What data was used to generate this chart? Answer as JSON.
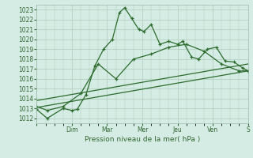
{
  "background_color": "#d4ece4",
  "grid_color": "#b0ccbb",
  "line_color": "#2d6b2d",
  "xlabel": "Pression niveau de la mer( hPa )",
  "ylim": [
    1011.5,
    1023.5
  ],
  "yticks": [
    1012,
    1013,
    1014,
    1015,
    1016,
    1017,
    1018,
    1019,
    1020,
    1021,
    1022,
    1023
  ],
  "xtick_labels": [
    "",
    "Dim",
    "Mar",
    "Mer",
    "Jeu",
    "Ven",
    "S"
  ],
  "xtick_positions": [
    0,
    2,
    4,
    6,
    8,
    10,
    12
  ],
  "series1_x": [
    0,
    0.6,
    1.5,
    2.0,
    2.3,
    2.8,
    3.3,
    3.8,
    4.3,
    4.7,
    5.0,
    5.4,
    5.8,
    6.1,
    6.5,
    7.0,
    7.5,
    8.0,
    8.3,
    8.8,
    9.2,
    9.7,
    10.2,
    10.7,
    11.2,
    11.7,
    12.0
  ],
  "series1_y": [
    1012.9,
    1012.0,
    1013.0,
    1012.8,
    1012.9,
    1014.4,
    1017.3,
    1019.0,
    1020.0,
    1022.7,
    1023.2,
    1022.1,
    1021.0,
    1020.8,
    1021.5,
    1019.5,
    1019.8,
    1019.5,
    1019.8,
    1018.2,
    1018.0,
    1019.0,
    1019.2,
    1017.8,
    1017.7,
    1017.1,
    1016.8
  ],
  "series2_x": [
    0,
    0.6,
    1.5,
    2.5,
    3.5,
    4.5,
    5.5,
    6.5,
    7.5,
    8.5,
    9.5,
    10.5,
    11.5,
    12.0
  ],
  "series2_y": [
    1013.2,
    1012.8,
    1013.2,
    1014.5,
    1017.5,
    1016.0,
    1018.0,
    1018.5,
    1019.2,
    1019.5,
    1018.8,
    1017.5,
    1016.8,
    1016.8
  ],
  "series3_x": [
    0,
    12
  ],
  "series3_y": [
    1013.1,
    1016.8
  ],
  "series4_x": [
    0,
    12
  ],
  "series4_y": [
    1013.8,
    1017.5
  ]
}
